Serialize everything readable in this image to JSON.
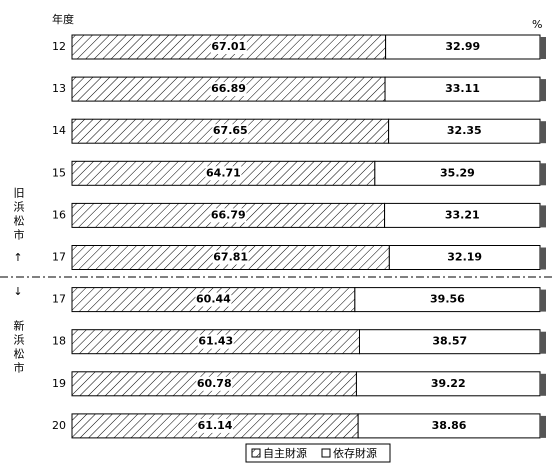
{
  "chart_data": {
    "type": "stacked-bar-horizontal",
    "y_label": "年度",
    "x_label": "%",
    "categories": [
      "12",
      "13",
      "14",
      "15",
      "16",
      "17",
      "17",
      "18",
      "19",
      "20"
    ],
    "series": [
      {
        "name": "自主財源",
        "color": "#ffffff",
        "values": [
          67.01,
          66.89,
          67.65,
          64.71,
          66.79,
          67.81,
          60.44,
          61.43,
          60.78,
          61.14
        ]
      },
      {
        "name": "依存財源",
        "color": "#ffffff",
        "values": [
          32.99,
          33.11,
          32.35,
          35.29,
          33.21,
          32.19,
          39.56,
          38.57,
          39.22,
          38.86
        ]
      }
    ],
    "xlim": [
      0,
      100
    ],
    "groups": [
      {
        "name": "旧浜松市",
        "arrow": "↑"
      },
      {
        "name": "新浜松市",
        "arrow": "↓"
      }
    ],
    "legend": "bottom"
  }
}
